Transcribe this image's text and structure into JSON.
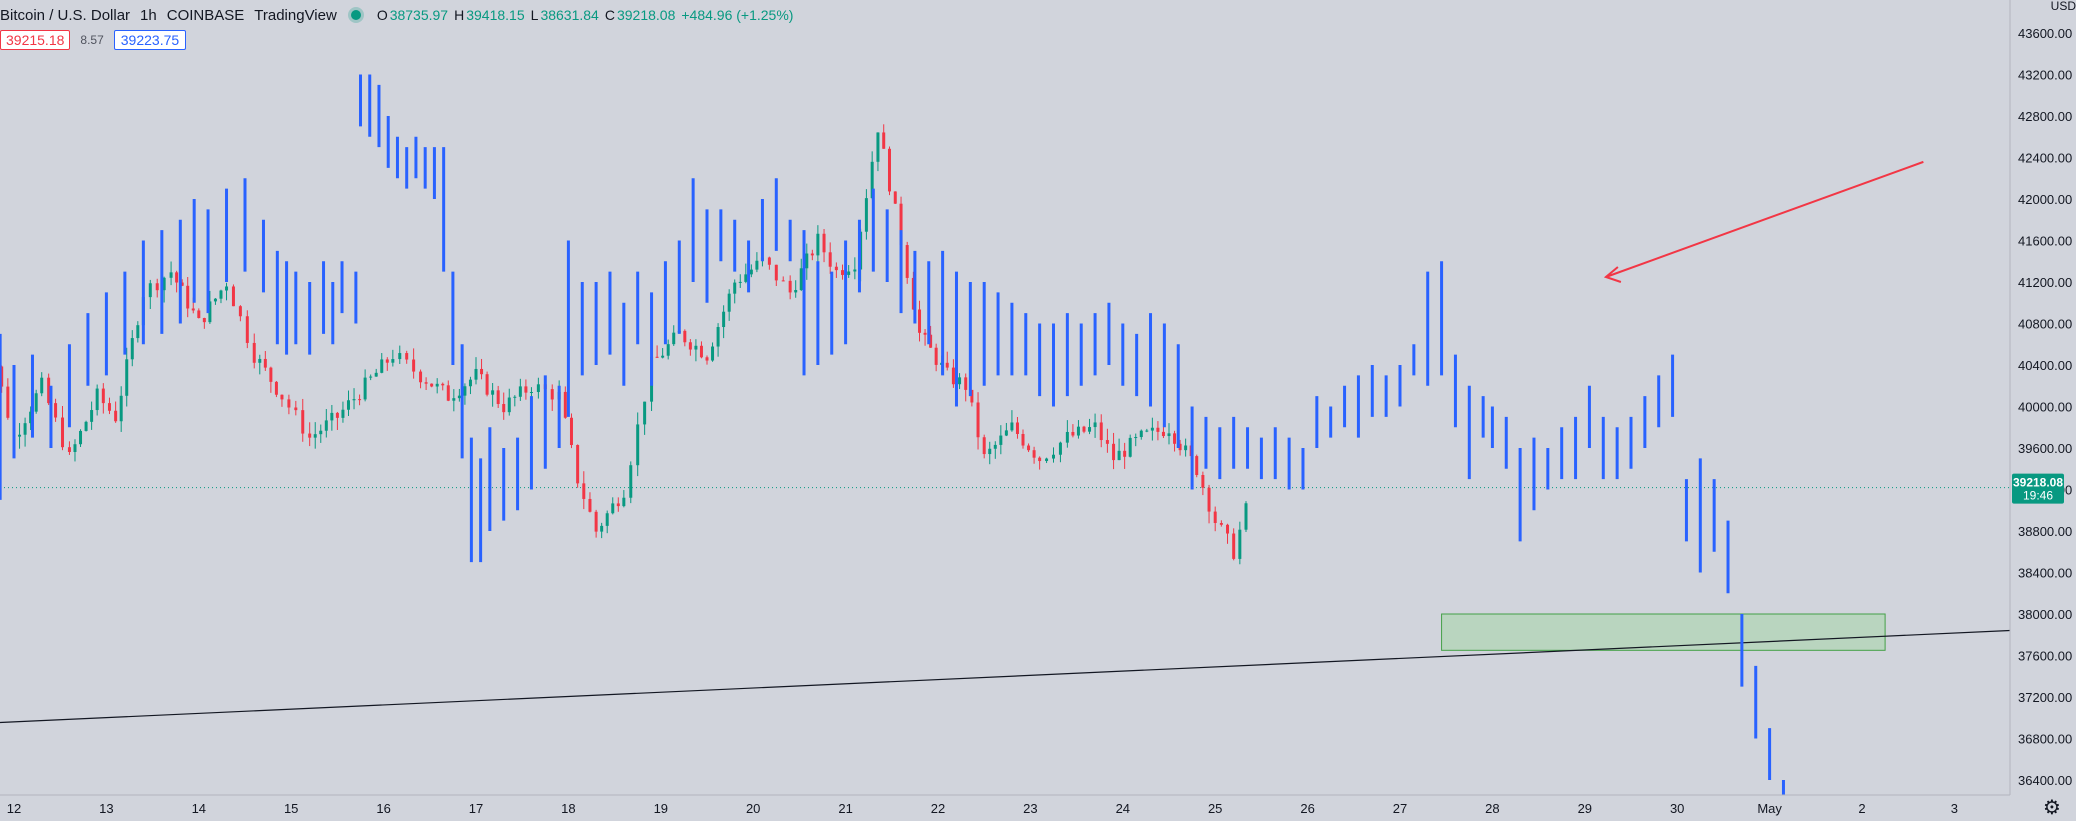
{
  "header": {
    "symbol": "Bitcoin / U.S. Dollar",
    "interval": "1h",
    "exchange": "COINBASE",
    "source": "TradingView",
    "ohlc": {
      "o_key": "O",
      "o_val": "38735.97",
      "h_key": "H",
      "h_val": "39418.15",
      "l_key": "L",
      "l_val": "38631.84",
      "c_key": "C",
      "c_val": "39218.08",
      "change": "+484.96 (+1.25%)"
    },
    "sell_price": "39215.18",
    "spread": "8.57",
    "buy_price": "39223.75"
  },
  "axis_unit": "USD",
  "settings_icon": "gear-icon",
  "current_price_label": {
    "price": "39218.08",
    "countdown": "19:46"
  },
  "colors": {
    "background": "#d1d4dc",
    "bullish": "#089981",
    "bearish": "#f23645",
    "fractal_bars": "#2962ff",
    "arrow": "#f23645",
    "trendline": "#131722",
    "zone_fill": "#a5d6a7",
    "zone_border": "#43a047"
  },
  "chart_data": {
    "type": "candlestick",
    "x_labels": [
      "12",
      "13",
      "14",
      "15",
      "16",
      "17",
      "18",
      "19",
      "20",
      "21",
      "22",
      "23",
      "24",
      "25",
      "26",
      "27",
      "28",
      "29",
      "30",
      "May",
      "2",
      "3"
    ],
    "y_ticks": [
      "43600.00",
      "43200.00",
      "42800.00",
      "42400.00",
      "42000.00",
      "41600.00",
      "41200.00",
      "40800.00",
      "40400.00",
      "40000.00",
      "39600.00",
      "39200.00",
      "38800.00",
      "38400.00",
      "38000.00",
      "37600.00",
      "37200.00",
      "36800.00",
      "36400.00"
    ],
    "ylim": [
      36100,
      44000
    ],
    "current_price": 39218.08,
    "candle_path": [
      [
        11.6,
        39800
      ],
      [
        11.8,
        40400
      ],
      [
        12.0,
        39700
      ],
      [
        12.3,
        40200
      ],
      [
        12.6,
        39500
      ],
      [
        12.9,
        40100
      ],
      [
        13.1,
        39900
      ],
      [
        13.4,
        41100
      ],
      [
        13.7,
        41300
      ],
      [
        14.0,
        40800
      ],
      [
        14.3,
        41200
      ],
      [
        14.6,
        40500
      ],
      [
        14.9,
        40100
      ],
      [
        15.2,
        39700
      ],
      [
        15.5,
        39900
      ],
      [
        15.8,
        40200
      ],
      [
        16.1,
        40500
      ],
      [
        16.4,
        40300
      ],
      [
        16.7,
        40100
      ],
      [
        17.0,
        40300
      ],
      [
        17.3,
        40000
      ],
      [
        17.6,
        40200
      ],
      [
        17.9,
        40100
      ],
      [
        18.1,
        39300
      ],
      [
        18.3,
        38800
      ],
      [
        18.6,
        39200
      ],
      [
        18.9,
        40400
      ],
      [
        19.2,
        40700
      ],
      [
        19.5,
        40500
      ],
      [
        19.8,
        41200
      ],
      [
        20.1,
        41400
      ],
      [
        20.4,
        41100
      ],
      [
        20.7,
        41600
      ],
      [
        20.9,
        41300
      ],
      [
        21.1,
        41400
      ],
      [
        21.35,
        42700
      ],
      [
        21.6,
        41600
      ],
      [
        21.8,
        40700
      ],
      [
        22.1,
        40300
      ],
      [
        22.3,
        40200
      ],
      [
        22.5,
        39500
      ],
      [
        22.8,
        39800
      ],
      [
        23.1,
        39500
      ],
      [
        23.4,
        39700
      ],
      [
        23.7,
        39800
      ],
      [
        23.9,
        39500
      ],
      [
        24.2,
        39700
      ],
      [
        24.5,
        39800
      ],
      [
        24.8,
        39400
      ],
      [
        25.0,
        38900
      ],
      [
        25.2,
        38600
      ],
      [
        25.4,
        39200
      ]
    ],
    "fractal_bars": [
      [
        11.5,
        40100,
        41600
      ],
      [
        11.7,
        39400,
        41500
      ],
      [
        11.85,
        39100,
        40700
      ],
      [
        12.0,
        39500,
        40400
      ],
      [
        12.2,
        39700,
        40500
      ],
      [
        12.4,
        39600,
        40200
      ],
      [
        12.6,
        39800,
        40600
      ],
      [
        12.8,
        40200,
        40900
      ],
      [
        13.0,
        40300,
        41100
      ],
      [
        13.2,
        40500,
        41300
      ],
      [
        13.4,
        40600,
        41600
      ],
      [
        13.6,
        40700,
        41700
      ],
      [
        13.8,
        40800,
        41800
      ],
      [
        13.95,
        41000,
        42000
      ],
      [
        14.1,
        40900,
        41900
      ],
      [
        14.3,
        41200,
        42100
      ],
      [
        14.5,
        41300,
        42200
      ],
      [
        14.7,
        41100,
        41800
      ],
      [
        14.85,
        40600,
        41500
      ],
      [
        14.95,
        40500,
        41400
      ],
      [
        15.05,
        40600,
        41300
      ],
      [
        15.2,
        40500,
        41200
      ],
      [
        15.35,
        40700,
        41400
      ],
      [
        15.45,
        40600,
        41200
      ],
      [
        15.55,
        40900,
        41400
      ],
      [
        15.7,
        40800,
        41300
      ],
      [
        15.75,
        42700,
        43200
      ],
      [
        15.85,
        42600,
        43200
      ],
      [
        15.95,
        42500,
        43100
      ],
      [
        16.05,
        42300,
        42800
      ],
      [
        16.15,
        42200,
        42600
      ],
      [
        16.25,
        42100,
        42500
      ],
      [
        16.35,
        42200,
        42600
      ],
      [
        16.45,
        42100,
        42500
      ],
      [
        16.55,
        42000,
        42500
      ],
      [
        16.65,
        41300,
        42500
      ],
      [
        16.75,
        40400,
        41300
      ],
      [
        16.85,
        39500,
        40600
      ],
      [
        16.95,
        38500,
        39700
      ],
      [
        17.05,
        38500,
        39500
      ],
      [
        17.15,
        38800,
        39800
      ],
      [
        17.3,
        38900,
        39600
      ],
      [
        17.45,
        39000,
        39700
      ],
      [
        17.6,
        39200,
        40100
      ],
      [
        17.75,
        39400,
        40300
      ],
      [
        17.9,
        39600,
        40200
      ],
      [
        18.0,
        39900,
        41600
      ],
      [
        18.15,
        40300,
        41200
      ],
      [
        18.3,
        40400,
        41200
      ],
      [
        18.45,
        40500,
        41300
      ],
      [
        18.6,
        40200,
        41000
      ],
      [
        18.75,
        40600,
        41300
      ],
      [
        18.9,
        40200,
        41100
      ],
      [
        19.05,
        40600,
        41400
      ],
      [
        19.2,
        40700,
        41600
      ],
      [
        19.35,
        41200,
        42200
      ],
      [
        19.5,
        41000,
        41900
      ],
      [
        19.65,
        41400,
        41900
      ],
      [
        19.8,
        41300,
        41800
      ],
      [
        19.95,
        41100,
        41600
      ],
      [
        20.1,
        41400,
        42000
      ],
      [
        20.25,
        41500,
        42200
      ],
      [
        20.4,
        41400,
        41800
      ],
      [
        20.55,
        40300,
        41700
      ],
      [
        20.7,
        40400,
        41400
      ],
      [
        20.85,
        40500,
        41300
      ],
      [
        21.0,
        40600,
        41600
      ],
      [
        21.15,
        41100,
        41800
      ],
      [
        21.3,
        41300,
        42100
      ],
      [
        21.45,
        41200,
        41900
      ],
      [
        21.6,
        40900,
        41700
      ],
      [
        21.75,
        40800,
        41500
      ],
      [
        21.9,
        40600,
        41400
      ],
      [
        22.05,
        40300,
        41500
      ],
      [
        22.2,
        40000,
        41300
      ],
      [
        22.35,
        40100,
        41200
      ],
      [
        22.5,
        40200,
        41200
      ],
      [
        22.65,
        40300,
        41100
      ],
      [
        22.8,
        40300,
        41000
      ],
      [
        22.95,
        40300,
        40900
      ],
      [
        23.1,
        40100,
        40800
      ],
      [
        23.25,
        40000,
        40800
      ],
      [
        23.4,
        40100,
        40900
      ],
      [
        23.55,
        40200,
        40800
      ],
      [
        23.7,
        40300,
        40900
      ],
      [
        23.85,
        40400,
        41000
      ],
      [
        24.0,
        40200,
        40800
      ],
      [
        24.15,
        40100,
        40700
      ],
      [
        24.3,
        40000,
        40900
      ],
      [
        24.45,
        39800,
        40800
      ],
      [
        24.6,
        39600,
        40600
      ],
      [
        24.75,
        39200,
        40000
      ],
      [
        24.9,
        39400,
        39900
      ],
      [
        25.05,
        39300,
        39800
      ],
      [
        25.2,
        39400,
        39900
      ],
      [
        25.35,
        39400,
        39800
      ],
      [
        25.5,
        39300,
        39700
      ],
      [
        25.65,
        39300,
        39800
      ],
      [
        25.8,
        39200,
        39700
      ],
      [
        25.95,
        39200,
        39600
      ],
      [
        26.1,
        39600,
        40100
      ],
      [
        26.25,
        39700,
        40000
      ],
      [
        26.4,
        39800,
        40200
      ],
      [
        26.55,
        39700,
        40300
      ],
      [
        26.7,
        39900,
        40400
      ],
      [
        26.85,
        39900,
        40300
      ],
      [
        27.0,
        40000,
        40400
      ],
      [
        27.15,
        40300,
        40600
      ],
      [
        27.3,
        40200,
        41300
      ],
      [
        27.45,
        40300,
        41400
      ],
      [
        27.6,
        39800,
        40500
      ],
      [
        27.75,
        39300,
        40200
      ],
      [
        27.9,
        39700,
        40100
      ],
      [
        28.0,
        39600,
        40000
      ],
      [
        28.15,
        39400,
        39900
      ],
      [
        28.3,
        38700,
        39600
      ],
      [
        28.45,
        39000,
        39700
      ],
      [
        28.6,
        39200,
        39600
      ],
      [
        28.75,
        39300,
        39800
      ],
      [
        28.9,
        39300,
        39900
      ],
      [
        29.05,
        39600,
        40200
      ],
      [
        29.2,
        39300,
        39900
      ],
      [
        29.35,
        39300,
        39800
      ],
      [
        29.5,
        39400,
        39900
      ],
      [
        29.65,
        39600,
        40100
      ],
      [
        29.8,
        39800,
        40300
      ],
      [
        29.95,
        39900,
        40500
      ],
      [
        30.1,
        38700,
        39300
      ],
      [
        30.25,
        38400,
        39500
      ],
      [
        30.4,
        38600,
        39300
      ],
      [
        30.55,
        38200,
        38900
      ],
      [
        30.7,
        37300,
        38000
      ],
      [
        30.85,
        36800,
        37500
      ],
      [
        31.0,
        36400,
        36900
      ],
      [
        31.15,
        36100,
        36400
      ]
    ],
    "fractal_x_scale": "day_index",
    "trendline": {
      "x1": 11.5,
      "y1": 36800,
      "x2": 31.45,
      "y2": 37860
    },
    "zone": {
      "x1": 27.45,
      "y1": 38000,
      "x2": 32.25,
      "y2": 37650
    },
    "arrow": {
      "x1": 31.95,
      "y1": 42300,
      "x2": 29.25,
      "y2": 41200
    }
  }
}
